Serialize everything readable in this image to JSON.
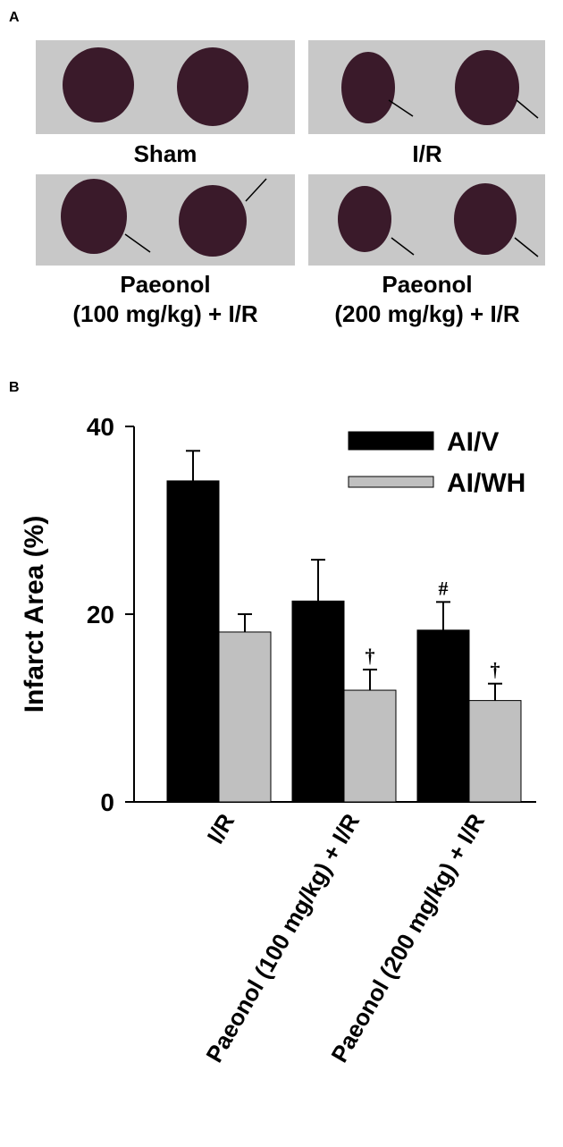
{
  "panel_a": {
    "label": "A",
    "images": [
      {
        "caption": [
          "Sham"
        ]
      },
      {
        "caption": [
          "I/R"
        ]
      },
      {
        "caption": [
          "Paeonol",
          "(100 mg/kg) + I/R"
        ]
      },
      {
        "caption": [
          "Paeonol",
          "(200 mg/kg) + I/R"
        ]
      }
    ]
  },
  "chart_data": {
    "type": "bar",
    "panel_label": "B",
    "y_label": "Infarct Area (%)",
    "categories": [
      "I/R",
      "Paeonol (100 mg/kg) + I/R",
      "Paeonol (200 mg/kg) + I/R"
    ],
    "series": [
      {
        "name": "AI/V",
        "color": "#000000",
        "values": [
          34.2,
          21.4,
          18.3
        ],
        "errors": [
          3.2,
          4.4,
          3.0
        ],
        "markers": [
          null,
          null,
          "#"
        ]
      },
      {
        "name": "AI/WH",
        "color": "#c0c0c0",
        "values": [
          18.1,
          11.9,
          10.8
        ],
        "errors": [
          1.9,
          2.2,
          1.8
        ],
        "markers": [
          null,
          "†",
          "†"
        ]
      }
    ],
    "ylim": [
      0,
      40
    ],
    "yticks": [
      0,
      20,
      40
    ],
    "legend": "upper right"
  }
}
